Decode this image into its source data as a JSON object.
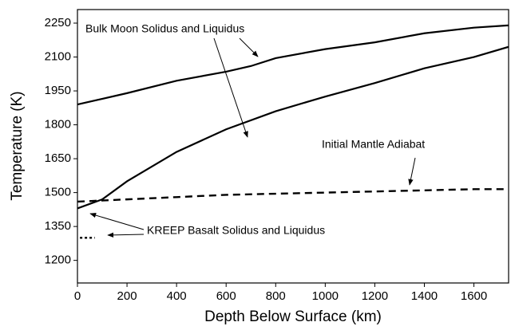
{
  "chart_data": {
    "type": "line",
    "xlabel": "Depth Below Surface (km)",
    "ylabel": "Temperature (K)",
    "annotations": [
      "Bulk Moon Solidus and Liquidus",
      "Initial Mantle Adiabat",
      "KREEP Basalt Solidus and Liquidus"
    ],
    "xlim": [
      0,
      1740
    ],
    "ylim": [
      1100,
      2310
    ],
    "xticks": [
      0,
      200,
      400,
      600,
      800,
      1000,
      1200,
      1400,
      1600
    ],
    "yticks": [
      1200,
      1350,
      1500,
      1650,
      1800,
      1950,
      2100,
      2250
    ],
    "series": [
      {
        "color": "#000000",
        "dash": "solid",
        "x": [
          0,
          200,
          400,
          600,
          700,
          800,
          1000,
          1200,
          1400,
          1600,
          1740
        ],
        "values": [
          1890,
          1940,
          1995,
          2035,
          2060,
          2095,
          2135,
          2165,
          2205,
          2230,
          2240
        ]
      },
      {
        "color": "#000000",
        "dash": "solid",
        "x": [
          0,
          100,
          200,
          400,
          600,
          800,
          1000,
          1200,
          1400,
          1600,
          1740
        ],
        "values": [
          1430,
          1470,
          1550,
          1680,
          1780,
          1860,
          1925,
          1985,
          2050,
          2100,
          2145
        ]
      },
      {
        "color": "#000000",
        "dash": "dashed",
        "x": [
          0,
          200,
          400,
          600,
          800,
          1000,
          1200,
          1400,
          1600,
          1740
        ],
        "values": [
          1460,
          1470,
          1480,
          1490,
          1495,
          1500,
          1505,
          1510,
          1515,
          1515
        ]
      },
      {
        "color": "#000000",
        "dash": "dotted",
        "x": [
          10,
          70
        ],
        "values": [
          1300,
          1300
        ]
      }
    ]
  }
}
